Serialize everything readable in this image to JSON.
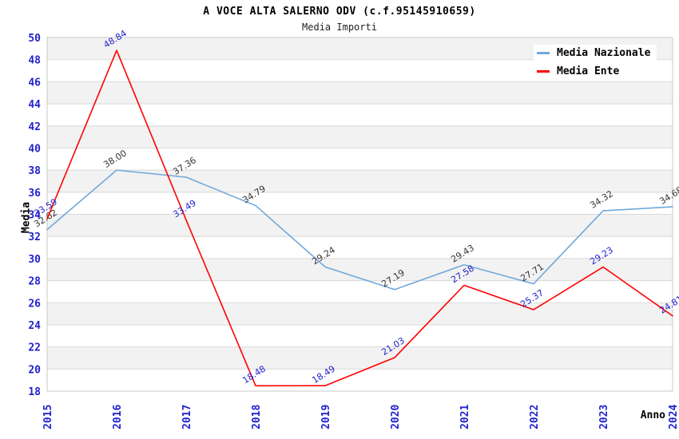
{
  "chart_data": {
    "type": "line",
    "title": "A VOCE ALTA SALERNO ODV (c.f.95145910659)",
    "subtitle": "Media Importi",
    "xlabel": "Anno",
    "ylabel": "Media",
    "categories": [
      "2015",
      "2016",
      "2017",
      "2018",
      "2019",
      "2020",
      "2021",
      "2022",
      "2023",
      "2024"
    ],
    "ylim": [
      18,
      50
    ],
    "ytick_step": 2,
    "grid": "horizontal striped bands with gridlines every 2 units",
    "legend_position": "top-right",
    "series": [
      {
        "name": "Media Nazionale",
        "color": "#6FA8DC",
        "label_color": "#333333",
        "values": [
          32.62,
          38.0,
          37.36,
          34.79,
          29.24,
          27.19,
          29.43,
          27.71,
          34.32,
          34.68
        ]
      },
      {
        "name": "Media Ente",
        "color": "#FF0000",
        "label_color": "#2222CC",
        "values": [
          33.59,
          48.84,
          33.49,
          18.48,
          18.49,
          21.03,
          27.58,
          25.37,
          29.23,
          24.81
        ]
      }
    ],
    "colors": {
      "tick_label": "#2222CC",
      "band": "#F2F2F2",
      "gridline": "#D9D9D9",
      "plot_border": "#C9C9C9",
      "axis_title": "#000000",
      "title": "#000000"
    }
  }
}
